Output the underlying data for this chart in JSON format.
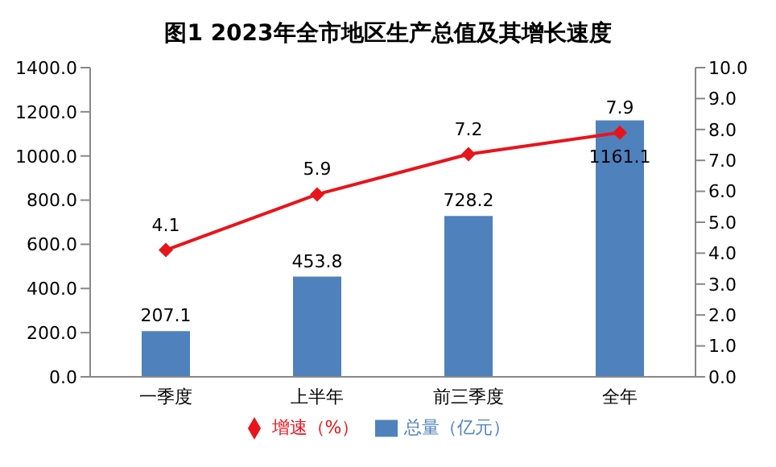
{
  "chart_data": {
    "type": "bar",
    "title": "图1  2023年全市地区生产总值及其增长速度",
    "categories": [
      "一季度",
      "上半年",
      "前三季度",
      "全年"
    ],
    "series": [
      {
        "name": "总量（亿元）",
        "color": "#4f81bd",
        "values": [
          207.1,
          453.8,
          728.2,
          1161.1
        ]
      },
      {
        "name": "增速（%）",
        "type": "line",
        "axis": "y2",
        "color": "#e8141b",
        "values": [
          4.1,
          5.9,
          7.2,
          7.9
        ]
      }
    ],
    "ylim": [
      0,
      1400
    ],
    "yticks": [
      {
        "value": 0,
        "label": "0.0"
      },
      {
        "value": 200,
        "label": "200.0"
      },
      {
        "value": 400,
        "label": "400.0"
      },
      {
        "value": 600,
        "label": "600.0"
      },
      {
        "value": 800,
        "label": "800.0"
      },
      {
        "value": 1000,
        "label": "1000.0"
      },
      {
        "value": 1200,
        "label": "1200.0"
      },
      {
        "value": 1400,
        "label": "1400.0"
      }
    ],
    "y2lim": [
      0,
      10
    ],
    "y2ticks": [
      {
        "value": 0,
        "label": "0.0"
      },
      {
        "value": 1,
        "label": "1.0"
      },
      {
        "value": 2,
        "label": "2.0"
      },
      {
        "value": 3,
        "label": "3.0"
      },
      {
        "value": 4,
        "label": "4.0"
      },
      {
        "value": 5,
        "label": "5.0"
      },
      {
        "value": 6,
        "label": "6.0"
      },
      {
        "value": 7,
        "label": "7.0"
      },
      {
        "value": 8,
        "label": "8.0"
      },
      {
        "value": 9,
        "label": "9.0"
      },
      {
        "value": 10,
        "label": "10.0"
      }
    ],
    "data_labels": true,
    "marker": "diamond",
    "grid": false,
    "legend": "bottom"
  }
}
